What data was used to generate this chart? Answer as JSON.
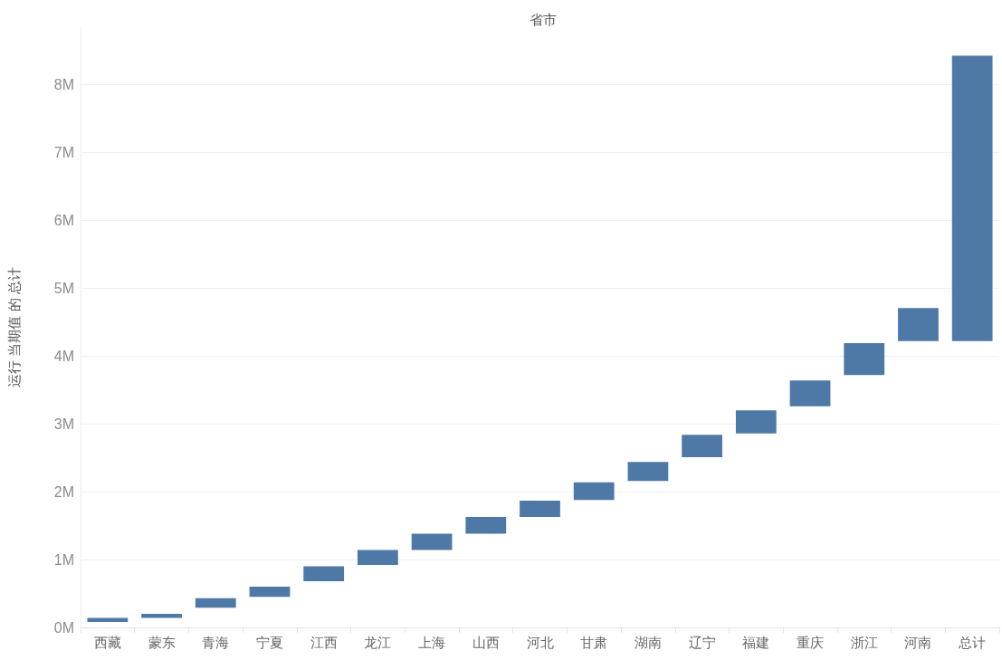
{
  "chart_data": {
    "type": "bar",
    "xlabel": "省市",
    "ylabel": "运行 当期值 的 总计",
    "categories": [
      "西藏",
      "蒙东",
      "青海",
      "宁夏",
      "江西",
      "龙江",
      "上海",
      "山西",
      "河北",
      "甘肃",
      "湖南",
      "辽宁",
      "福建",
      "重庆",
      "浙江",
      "河南",
      "总计"
    ],
    "base": [
      0.08,
      0.14,
      0.29,
      0.45,
      0.68,
      0.92,
      1.14,
      1.38,
      1.63,
      1.88,
      2.16,
      2.51,
      2.86,
      3.26,
      3.72,
      4.22,
      4.22
    ],
    "values": [
      0.06,
      0.06,
      0.14,
      0.15,
      0.22,
      0.22,
      0.24,
      0.25,
      0.24,
      0.26,
      0.28,
      0.33,
      0.34,
      0.38,
      0.47,
      0.49,
      4.21
    ],
    "color": "#4e79a7",
    "ylim": [
      0,
      8.85
    ],
    "yticks": [
      {
        "value": 0,
        "label": "0M"
      },
      {
        "value": 1,
        "label": "1M"
      },
      {
        "value": 2,
        "label": "2M"
      },
      {
        "value": 3,
        "label": "3M"
      },
      {
        "value": 4,
        "label": "4M"
      },
      {
        "value": 5,
        "label": "5M"
      },
      {
        "value": 6,
        "label": "6M"
      },
      {
        "value": 7,
        "label": "7M"
      },
      {
        "value": 8,
        "label": "8M"
      }
    ],
    "grid": "y"
  }
}
